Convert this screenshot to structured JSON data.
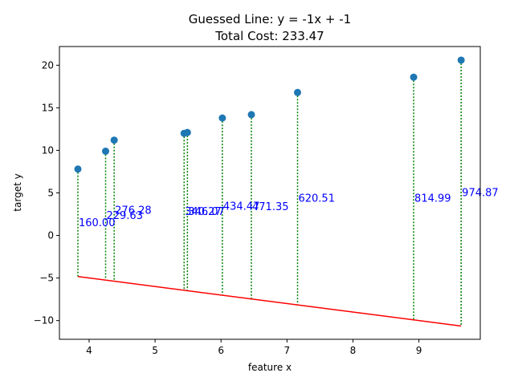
{
  "chart_data": {
    "type": "scatter",
    "title": "Guessed Line: y = -1x + -1",
    "subtitle": "Total Cost: 233.47",
    "xlabel": "feature x",
    "ylabel": "target y",
    "xlim": [
      3.55,
      9.93
    ],
    "ylim": [
      -12.2,
      22.2
    ],
    "xticks": [
      4,
      5,
      6,
      7,
      8,
      9
    ],
    "yticks": [
      -10,
      -5,
      0,
      5,
      10,
      15,
      20
    ],
    "grid": false,
    "points": [
      {
        "x": 3.83,
        "y": 7.8,
        "pred": -4.83,
        "cost": "160.00"
      },
      {
        "x": 4.25,
        "y": 9.9,
        "pred": -5.25,
        "cost": "229.63"
      },
      {
        "x": 4.38,
        "y": 11.2,
        "pred": -5.38,
        "cost": "276.28"
      },
      {
        "x": 5.44,
        "y": 12.0,
        "pred": -6.44,
        "cost": "340.27"
      },
      {
        "x": 5.49,
        "y": 12.1,
        "pred": -6.49,
        "cost": "346.07"
      },
      {
        "x": 6.02,
        "y": 13.8,
        "pred": -7.02,
        "cost": "434.47"
      },
      {
        "x": 6.46,
        "y": 14.2,
        "pred": -7.46,
        "cost": "471.35"
      },
      {
        "x": 7.16,
        "y": 16.8,
        "pred": -8.16,
        "cost": "620.51"
      },
      {
        "x": 8.92,
        "y": 18.6,
        "pred": -9.92,
        "cost": "814.99"
      },
      {
        "x": 9.64,
        "y": 20.6,
        "pred": -10.64,
        "cost": "974.87"
      }
    ],
    "line": {
      "slope": -1,
      "intercept": -1,
      "x_start": 3.83,
      "x_end": 9.64
    },
    "colors": {
      "points": "#1f77b4",
      "line": "#ff0000",
      "residual": "#008000",
      "cost_label": "#0000ff",
      "axes": "#000000"
    }
  }
}
